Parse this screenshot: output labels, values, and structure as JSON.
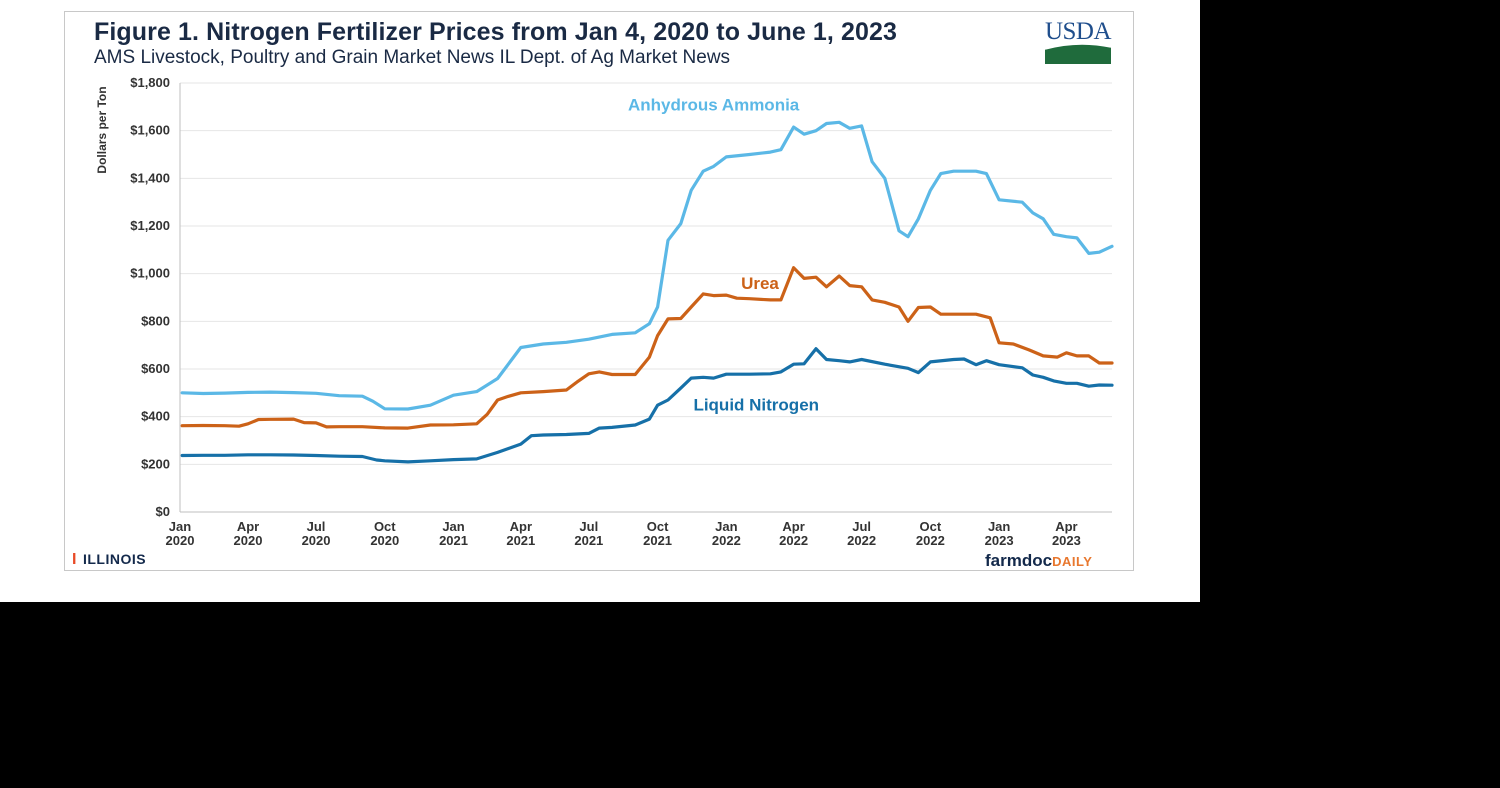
{
  "title": "Figure 1.  Nitrogen Fertilizer Prices from Jan 4, 2020 to June 1, 2023",
  "subtitle": "AMS Livestock, Poultry and Grain Market News IL Dept. of Ag Market News",
  "logos": {
    "usda": "USDA",
    "illinois_mark": "I",
    "illinois": "ILLINOIS",
    "farmdoc": "farmdoc",
    "farmdoc_daily": "DAILY"
  },
  "colors": {
    "anhydrous": "#5bb8e6",
    "urea": "#cc6218",
    "liquid": "#1670a8",
    "grid": "#e6e6e6"
  },
  "chart_data": {
    "type": "line",
    "title": "Figure 1.  Nitrogen Fertilizer Prices from Jan 4, 2020 to June 1, 2023",
    "subtitle": "AMS Livestock, Poultry and Grain Market News IL Dept. of Ag Market News",
    "xlabel": "",
    "ylabel": "Dollars per Ton",
    "ylim": [
      0,
      1800
    ],
    "yticks": [
      0,
      200,
      400,
      600,
      800,
      1000,
      1200,
      1400,
      1600,
      1800
    ],
    "ytick_labels": [
      "$0",
      "$200",
      "$400",
      "$600",
      "$800",
      "$1,000",
      "$1,200",
      "$1,400",
      "$1,600",
      "$1,800"
    ],
    "xlim": [
      "2020-01-01",
      "2023-06-01"
    ],
    "xticks": [
      {
        "date": "2020-01-01",
        "month": "Jan",
        "year": "2020"
      },
      {
        "date": "2020-04-01",
        "month": "Apr",
        "year": "2020"
      },
      {
        "date": "2020-07-01",
        "month": "Jul",
        "year": "2020"
      },
      {
        "date": "2020-10-01",
        "month": "Oct",
        "year": "2020"
      },
      {
        "date": "2021-01-01",
        "month": "Jan",
        "year": "2021"
      },
      {
        "date": "2021-04-01",
        "month": "Apr",
        "year": "2021"
      },
      {
        "date": "2021-07-01",
        "month": "Jul",
        "year": "2021"
      },
      {
        "date": "2021-10-01",
        "month": "Oct",
        "year": "2021"
      },
      {
        "date": "2022-01-01",
        "month": "Jan",
        "year": "2022"
      },
      {
        "date": "2022-04-01",
        "month": "Apr",
        "year": "2022"
      },
      {
        "date": "2022-07-01",
        "month": "Jul",
        "year": "2022"
      },
      {
        "date": "2022-10-01",
        "month": "Oct",
        "year": "2022"
      },
      {
        "date": "2023-01-01",
        "month": "Jan",
        "year": "2023"
      },
      {
        "date": "2023-04-01",
        "month": "Apr",
        "year": "2023"
      }
    ],
    "grid": true,
    "legend": "inline labels",
    "series": [
      {
        "name": "Anhydrous Ammonia",
        "color": "#5bb8e6",
        "points": [
          [
            "2020-01-04",
            500
          ],
          [
            "2020-02-01",
            497
          ],
          [
            "2020-03-01",
            499
          ],
          [
            "2020-04-01",
            502
          ],
          [
            "2020-05-01",
            503
          ],
          [
            "2020-06-01",
            501
          ],
          [
            "2020-07-01",
            498
          ],
          [
            "2020-08-01",
            488
          ],
          [
            "2020-09-01",
            486
          ],
          [
            "2020-09-15",
            465
          ],
          [
            "2020-10-01",
            433
          ],
          [
            "2020-11-01",
            432
          ],
          [
            "2020-12-01",
            448
          ],
          [
            "2021-01-01",
            490
          ],
          [
            "2021-02-01",
            505
          ],
          [
            "2021-03-01",
            560
          ],
          [
            "2021-04-01",
            690
          ],
          [
            "2021-05-01",
            705
          ],
          [
            "2021-06-01",
            712
          ],
          [
            "2021-07-01",
            725
          ],
          [
            "2021-08-01",
            745
          ],
          [
            "2021-09-01",
            752
          ],
          [
            "2021-09-20",
            790
          ],
          [
            "2021-10-01",
            860
          ],
          [
            "2021-10-15",
            1140
          ],
          [
            "2021-11-01",
            1210
          ],
          [
            "2021-11-15",
            1350
          ],
          [
            "2021-12-01",
            1430
          ],
          [
            "2021-12-15",
            1450
          ],
          [
            "2022-01-01",
            1490
          ],
          [
            "2022-02-01",
            1500
          ],
          [
            "2022-03-01",
            1510
          ],
          [
            "2022-03-15",
            1520
          ],
          [
            "2022-04-01",
            1615
          ],
          [
            "2022-04-15",
            1585
          ],
          [
            "2022-05-01",
            1600
          ],
          [
            "2022-05-15",
            1630
          ],
          [
            "2022-06-01",
            1635
          ],
          [
            "2022-06-15",
            1610
          ],
          [
            "2022-07-01",
            1620
          ],
          [
            "2022-07-15",
            1470
          ],
          [
            "2022-08-01",
            1400
          ],
          [
            "2022-08-20",
            1180
          ],
          [
            "2022-09-01",
            1155
          ],
          [
            "2022-09-15",
            1230
          ],
          [
            "2022-10-01",
            1350
          ],
          [
            "2022-10-15",
            1420
          ],
          [
            "2022-11-01",
            1430
          ],
          [
            "2022-12-01",
            1430
          ],
          [
            "2022-12-15",
            1420
          ],
          [
            "2023-01-01",
            1310
          ],
          [
            "2023-02-01",
            1300
          ],
          [
            "2023-02-15",
            1255
          ],
          [
            "2023-03-01",
            1230
          ],
          [
            "2023-03-15",
            1165
          ],
          [
            "2023-04-01",
            1155
          ],
          [
            "2023-04-15",
            1150
          ],
          [
            "2023-05-01",
            1085
          ],
          [
            "2023-05-15",
            1090
          ],
          [
            "2023-06-01",
            1115
          ]
        ]
      },
      {
        "name": "Urea",
        "color": "#cc6218",
        "points": [
          [
            "2020-01-04",
            362
          ],
          [
            "2020-02-01",
            363
          ],
          [
            "2020-03-01",
            362
          ],
          [
            "2020-03-20",
            360
          ],
          [
            "2020-04-01",
            370
          ],
          [
            "2020-04-15",
            388
          ],
          [
            "2020-05-01",
            389
          ],
          [
            "2020-06-01",
            390
          ],
          [
            "2020-06-15",
            375
          ],
          [
            "2020-07-01",
            374
          ],
          [
            "2020-07-15",
            357
          ],
          [
            "2020-08-01",
            358
          ],
          [
            "2020-09-01",
            358
          ],
          [
            "2020-10-01",
            353
          ],
          [
            "2020-11-01",
            352
          ],
          [
            "2020-12-01",
            365
          ],
          [
            "2021-01-01",
            366
          ],
          [
            "2021-02-01",
            370
          ],
          [
            "2021-02-15",
            410
          ],
          [
            "2021-03-01",
            470
          ],
          [
            "2021-03-15",
            485
          ],
          [
            "2021-04-01",
            500
          ],
          [
            "2021-05-01",
            505
          ],
          [
            "2021-06-01",
            512
          ],
          [
            "2021-06-15",
            545
          ],
          [
            "2021-07-01",
            580
          ],
          [
            "2021-07-15",
            588
          ],
          [
            "2021-08-01",
            577
          ],
          [
            "2021-09-01",
            577
          ],
          [
            "2021-09-20",
            650
          ],
          [
            "2021-10-01",
            740
          ],
          [
            "2021-10-15",
            810
          ],
          [
            "2021-11-01",
            812
          ],
          [
            "2021-11-15",
            860
          ],
          [
            "2021-12-01",
            915
          ],
          [
            "2021-12-15",
            908
          ],
          [
            "2022-01-01",
            910
          ],
          [
            "2022-01-15",
            897
          ],
          [
            "2022-02-01",
            895
          ],
          [
            "2022-03-01",
            890
          ],
          [
            "2022-03-15",
            890
          ],
          [
            "2022-04-01",
            1025
          ],
          [
            "2022-04-15",
            980
          ],
          [
            "2022-05-01",
            985
          ],
          [
            "2022-05-15",
            945
          ],
          [
            "2022-06-01",
            990
          ],
          [
            "2022-06-15",
            950
          ],
          [
            "2022-07-01",
            945
          ],
          [
            "2022-07-15",
            890
          ],
          [
            "2022-08-01",
            880
          ],
          [
            "2022-08-20",
            860
          ],
          [
            "2022-09-01",
            800
          ],
          [
            "2022-09-15",
            858
          ],
          [
            "2022-10-01",
            860
          ],
          [
            "2022-10-15",
            830
          ],
          [
            "2022-11-01",
            830
          ],
          [
            "2022-12-01",
            830
          ],
          [
            "2022-12-20",
            815
          ],
          [
            "2023-01-01",
            710
          ],
          [
            "2023-01-20",
            705
          ],
          [
            "2023-02-10",
            680
          ],
          [
            "2023-03-01",
            655
          ],
          [
            "2023-03-20",
            650
          ],
          [
            "2023-04-01",
            668
          ],
          [
            "2023-04-15",
            655
          ],
          [
            "2023-05-01",
            655
          ],
          [
            "2023-05-15",
            625
          ],
          [
            "2023-06-01",
            625
          ]
        ]
      },
      {
        "name": "Liquid Nitrogen",
        "color": "#1670a8",
        "points": [
          [
            "2020-01-04",
            237
          ],
          [
            "2020-02-01",
            238
          ],
          [
            "2020-03-01",
            238
          ],
          [
            "2020-04-01",
            240
          ],
          [
            "2020-05-01",
            240
          ],
          [
            "2020-06-01",
            239
          ],
          [
            "2020-07-01",
            237
          ],
          [
            "2020-08-01",
            234
          ],
          [
            "2020-09-01",
            233
          ],
          [
            "2020-09-20",
            218
          ],
          [
            "2020-10-01",
            215
          ],
          [
            "2020-11-01",
            210
          ],
          [
            "2020-12-01",
            215
          ],
          [
            "2021-01-01",
            220
          ],
          [
            "2021-02-01",
            223
          ],
          [
            "2021-03-01",
            250
          ],
          [
            "2021-04-01",
            285
          ],
          [
            "2021-04-15",
            320
          ],
          [
            "2021-05-01",
            323
          ],
          [
            "2021-06-01",
            325
          ],
          [
            "2021-07-01",
            330
          ],
          [
            "2021-07-15",
            352
          ],
          [
            "2021-08-01",
            355
          ],
          [
            "2021-09-01",
            365
          ],
          [
            "2021-09-20",
            390
          ],
          [
            "2021-10-01",
            448
          ],
          [
            "2021-10-15",
            470
          ],
          [
            "2021-11-01",
            520
          ],
          [
            "2021-11-15",
            562
          ],
          [
            "2021-12-01",
            565
          ],
          [
            "2021-12-15",
            562
          ],
          [
            "2022-01-01",
            578
          ],
          [
            "2022-02-01",
            578
          ],
          [
            "2022-03-01",
            580
          ],
          [
            "2022-03-15",
            588
          ],
          [
            "2022-04-01",
            620
          ],
          [
            "2022-04-15",
            622
          ],
          [
            "2022-05-01",
            685
          ],
          [
            "2022-05-15",
            640
          ],
          [
            "2022-06-01",
            635
          ],
          [
            "2022-06-15",
            630
          ],
          [
            "2022-07-01",
            640
          ],
          [
            "2022-08-01",
            620
          ],
          [
            "2022-09-01",
            603
          ],
          [
            "2022-09-15",
            585
          ],
          [
            "2022-10-01",
            630
          ],
          [
            "2022-11-01",
            640
          ],
          [
            "2022-11-15",
            642
          ],
          [
            "2022-12-01",
            618
          ],
          [
            "2022-12-15",
            635
          ],
          [
            "2023-01-01",
            618
          ],
          [
            "2023-02-01",
            605
          ],
          [
            "2023-02-15",
            575
          ],
          [
            "2023-03-01",
            565
          ],
          [
            "2023-03-15",
            550
          ],
          [
            "2023-04-01",
            540
          ],
          [
            "2023-04-15",
            540
          ],
          [
            "2023-05-01",
            528
          ],
          [
            "2023-05-15",
            533
          ],
          [
            "2023-06-01",
            532
          ]
        ]
      }
    ]
  }
}
